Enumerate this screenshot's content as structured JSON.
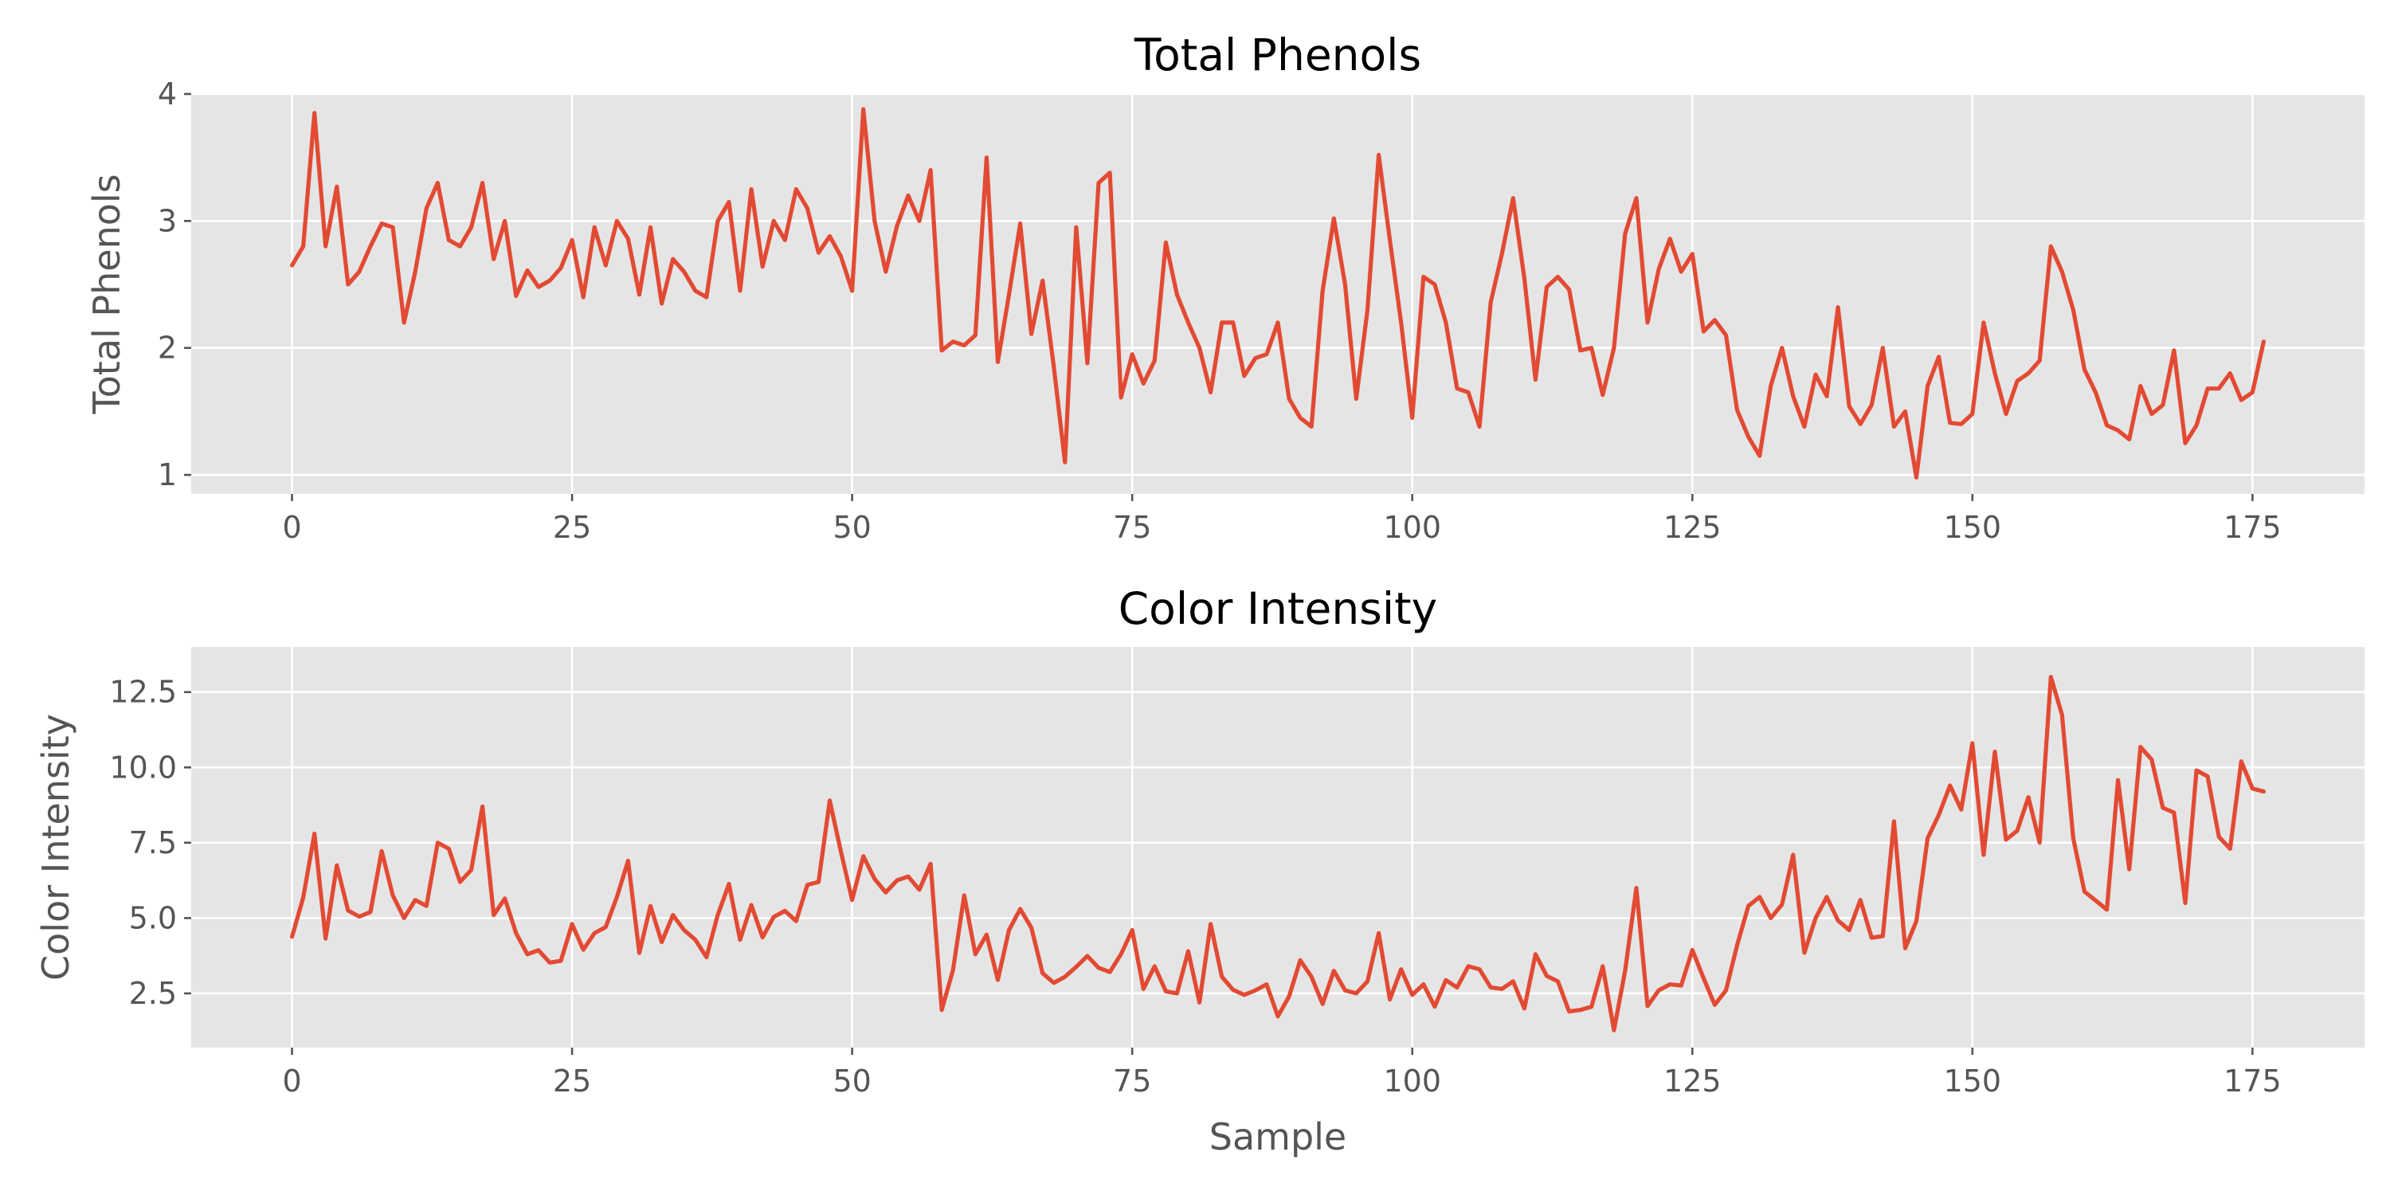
{
  "chart_data": [
    {
      "type": "line",
      "title": "Total Phenols",
      "xlabel": "",
      "ylabel": "Total Phenols",
      "xlim": [
        -9,
        185
      ],
      "ylim": [
        0.85,
        4.0
      ],
      "xticks": [
        0,
        25,
        50,
        75,
        100,
        125,
        150,
        175
      ],
      "xtick_labels": [
        "0",
        "25",
        "50",
        "75",
        "100",
        "125",
        "150",
        "175"
      ],
      "yticks": [
        1,
        2,
        3,
        4
      ],
      "ytick_labels": [
        "1",
        "2",
        "3",
        "4"
      ],
      "grid": true,
      "series": [
        {
          "color": "#E24A33",
          "x_start": 0,
          "values": [
            2.65,
            2.8,
            3.85,
            2.8,
            3.27,
            2.5,
            2.6,
            2.8,
            2.98,
            2.95,
            2.2,
            2.6,
            3.1,
            3.3,
            2.85,
            2.8,
            2.95,
            3.3,
            2.7,
            3.0,
            2.41,
            2.61,
            2.48,
            2.53,
            2.63,
            2.85,
            2.4,
            2.95,
            2.65,
            3.0,
            2.86,
            2.42,
            2.95,
            2.35,
            2.7,
            2.6,
            2.45,
            2.4,
            3.0,
            3.15,
            2.45,
            3.25,
            2.64,
            3.0,
            2.85,
            3.25,
            3.1,
            2.75,
            2.88,
            2.72,
            2.45,
            3.88,
            3.0,
            2.6,
            2.96,
            3.2,
            3.0,
            3.4,
            1.98,
            2.05,
            2.02,
            2.1,
            3.5,
            1.89,
            2.42,
            2.98,
            2.11,
            2.53,
            1.85,
            1.1,
            2.95,
            1.88,
            3.3,
            3.38,
            1.61,
            1.95,
            1.72,
            1.9,
            2.83,
            2.42,
            2.2,
            2.0,
            1.65,
            2.2,
            2.2,
            1.78,
            1.92,
            1.95,
            2.2,
            1.6,
            1.45,
            1.38,
            2.45,
            3.02,
            2.5,
            1.6,
            2.3,
            3.52,
            2.85,
            2.2,
            1.45,
            2.56,
            2.5,
            2.2,
            1.68,
            1.65,
            1.38,
            2.36,
            2.74,
            3.18,
            2.55,
            1.75,
            2.48,
            2.56,
            2.46,
            1.98,
            2.0,
            1.63,
            2.0,
            2.9,
            3.18,
            2.2,
            2.62,
            2.86,
            2.6,
            2.74,
            2.13,
            2.22,
            2.1,
            1.51,
            1.3,
            1.15,
            1.7,
            2.0,
            1.62,
            1.38,
            1.79,
            1.62,
            2.32,
            1.54,
            1.4,
            1.55,
            2.0,
            1.38,
            1.5,
            0.98,
            1.7,
            1.93,
            1.41,
            1.4,
            1.48,
            2.2,
            1.8,
            1.48,
            1.74,
            1.8,
            1.9,
            2.8,
            2.6,
            2.3,
            1.83,
            1.65,
            1.39,
            1.35,
            1.28,
            1.7,
            1.48,
            1.55,
            1.98,
            1.25,
            1.39,
            1.68,
            1.68,
            1.8,
            1.59,
            1.65,
            2.05
          ]
        }
      ]
    },
    {
      "type": "line",
      "title": "Color Intensity",
      "xlabel": "Sample",
      "ylabel": "Color Intensity",
      "xlim": [
        -9,
        185
      ],
      "ylim": [
        0.7,
        14.0
      ],
      "xticks": [
        0,
        25,
        50,
        75,
        100,
        125,
        150,
        175
      ],
      "xtick_labels": [
        "0",
        "25",
        "50",
        "75",
        "100",
        "125",
        "150",
        "175"
      ],
      "yticks": [
        2.5,
        5.0,
        7.5,
        10.0,
        12.5
      ],
      "ytick_labels": [
        "2.5",
        "5.0",
        "7.5",
        "10.0",
        "12.5"
      ],
      "grid": true,
      "series": [
        {
          "color": "#E24A33",
          "x_start": 0,
          "values": [
            4.38,
            5.68,
            7.8,
            4.32,
            6.75,
            5.25,
            5.05,
            5.2,
            7.22,
            5.75,
            5.0,
            5.6,
            5.4,
            7.5,
            7.3,
            6.2,
            6.6,
            8.7,
            5.1,
            5.65,
            4.5,
            3.8,
            3.93,
            3.52,
            3.58,
            4.8,
            3.95,
            4.5,
            4.7,
            5.7,
            6.9,
            3.84,
            5.4,
            4.2,
            5.1,
            4.6,
            4.28,
            3.7,
            5.1,
            6.13,
            4.28,
            5.43,
            4.36,
            5.04,
            5.24,
            4.9,
            6.1,
            6.2,
            8.9,
            7.2,
            5.6,
            7.05,
            6.3,
            5.85,
            6.25,
            6.38,
            5.94,
            6.8,
            1.95,
            3.27,
            5.75,
            3.8,
            4.45,
            2.95,
            4.6,
            5.3,
            4.68,
            3.17,
            2.85,
            3.05,
            3.38,
            3.74,
            3.35,
            3.21,
            3.8,
            4.6,
            2.65,
            3.4,
            2.57,
            2.5,
            3.9,
            2.2,
            4.8,
            3.05,
            2.62,
            2.45,
            2.6,
            2.8,
            1.74,
            2.4,
            3.6,
            3.05,
            2.15,
            3.25,
            2.6,
            2.5,
            2.9,
            4.5,
            2.3,
            3.3,
            2.45,
            2.8,
            2.06,
            2.94,
            2.7,
            3.4,
            3.3,
            2.7,
            2.65,
            2.9,
            2.0,
            3.8,
            3.08,
            2.9,
            1.9,
            1.95,
            2.06,
            3.4,
            1.28,
            3.25,
            6.0,
            2.08,
            2.6,
            2.8,
            2.76,
            3.94,
            3.0,
            2.12,
            2.6,
            4.1,
            5.4,
            5.7,
            5.0,
            5.45,
            7.1,
            3.85,
            5.0,
            5.7,
            4.92,
            4.6,
            5.6,
            4.35,
            4.4,
            8.21,
            4.0,
            4.9,
            7.65,
            8.42,
            9.4,
            8.6,
            10.8,
            7.1,
            10.52,
            7.6,
            7.9,
            9.01,
            7.5,
            13.0,
            11.75,
            7.65,
            5.88,
            5.58,
            5.28,
            9.58,
            6.62,
            10.68,
            10.26,
            8.66,
            8.5,
            5.5,
            9.9,
            9.7,
            7.7,
            7.3,
            10.2,
            9.3,
            9.2
          ]
        }
      ]
    }
  ]
}
